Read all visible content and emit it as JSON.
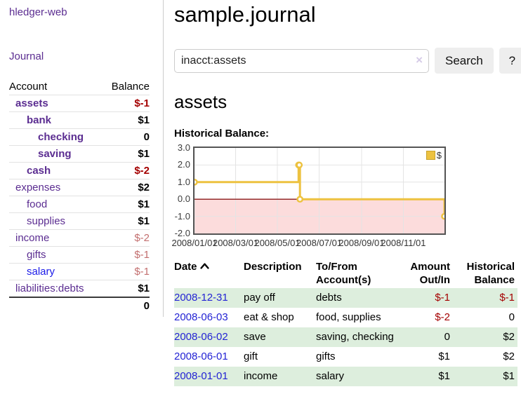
{
  "colors": {
    "link_purple": "#5b2d91",
    "link_blue": "#1b1be8",
    "date_link_blue": "#2323d4",
    "negative_strong": "#a40000",
    "negative_soft": "#c36f6f",
    "row_green": "#ddeedd",
    "series_gold": "#edc240",
    "negative_area_pink": "#fcdcdc",
    "zero_line_red": "#8b1a1a",
    "plot_border": "#545454",
    "grid_line": "#e4e4e4",
    "button_gray": "#eeeeee"
  },
  "sidebar": {
    "brand": "hledger-web",
    "journal_link": "Journal",
    "accounts": {
      "header_account": "Account",
      "header_balance": "Balance",
      "rows": [
        {
          "name": "assets",
          "depth": 1,
          "bold": true,
          "balance": "$-1",
          "neg": "strong"
        },
        {
          "name": "bank",
          "depth": 2,
          "bold": true,
          "balance": "$1"
        },
        {
          "name": "checking",
          "depth": 3,
          "bold": true,
          "balance": "0"
        },
        {
          "name": "saving",
          "depth": 3,
          "bold": true,
          "balance": "$1"
        },
        {
          "name": "cash",
          "depth": 2,
          "bold": true,
          "balance": "$-2",
          "neg": "strong"
        },
        {
          "name": "expenses",
          "depth": 1,
          "bold": false,
          "balance": "$2"
        },
        {
          "name": "food",
          "depth": 2,
          "bold": false,
          "balance": "$1"
        },
        {
          "name": "supplies",
          "depth": 2,
          "bold": false,
          "balance": "$1"
        },
        {
          "name": "income",
          "depth": 1,
          "bold": false,
          "balance": "$-2",
          "neg": "soft"
        },
        {
          "name": "gifts",
          "depth": 2,
          "bold": false,
          "balance": "$-1",
          "neg": "soft"
        },
        {
          "name": "salary",
          "depth": 2,
          "bold": false,
          "balance": "$-1",
          "neg": "soft",
          "link_color": "blue"
        },
        {
          "name": "liabilities:debts",
          "depth": 1,
          "bold": false,
          "balance": "$1"
        }
      ],
      "total": "0"
    }
  },
  "main": {
    "title": "sample.journal",
    "search": {
      "value": "inacct:assets",
      "clear_icon": "×",
      "button_label": "Search",
      "help_label": "?"
    },
    "account_heading": "assets",
    "chart_heading": "Historical Balance:"
  },
  "chart_data": {
    "type": "line",
    "style": "step-with-markers",
    "title": "Historical Balance:",
    "series": [
      {
        "name": "$",
        "points": [
          {
            "date": "2008-01-01",
            "value": 1
          },
          {
            "date": "2008-06-01",
            "value": 2
          },
          {
            "date": "2008-06-02",
            "value": 2
          },
          {
            "date": "2008-06-03",
            "value": 0
          },
          {
            "date": "2008-12-31",
            "value": -1
          }
        ]
      }
    ],
    "x_range": [
      "2008-01-01",
      "2008-12-31"
    ],
    "x_ticks": [
      {
        "date": "2008-01-01",
        "label": "2008/01/01"
      },
      {
        "date": "2008-03-01",
        "label": "2008/03/01"
      },
      {
        "date": "2008-05-01",
        "label": "2008/05/01"
      },
      {
        "date": "2008-07-01",
        "label": "2008/07/01"
      },
      {
        "date": "2008-09-01",
        "label": "2008/09/01"
      },
      {
        "date": "2008-11-01",
        "label": "2008/11/01"
      }
    ],
    "ylim": [
      -2,
      3
    ],
    "y_ticks": [
      3.0,
      2.0,
      1.0,
      0.0,
      -1.0,
      -2.0
    ],
    "legend": {
      "label": "$",
      "position": "top-right"
    },
    "grid": true,
    "negative_region_shaded": true
  },
  "register": {
    "headers": [
      {
        "line1": "Date",
        "line2": "",
        "align": "left",
        "sort": "asc"
      },
      {
        "line1": "Description",
        "line2": "",
        "align": "left"
      },
      {
        "line1": "To/From",
        "line2": "Account(s)",
        "align": "left"
      },
      {
        "line1": "Amount",
        "line2": "Out/In",
        "align": "right"
      },
      {
        "line1": "Historical",
        "line2": "Balance",
        "align": "right"
      }
    ],
    "rows": [
      {
        "date": "2008-12-31",
        "description": "pay off",
        "accounts": "debts",
        "amount": "$-1",
        "balance": "$-1",
        "amount_neg": true,
        "balance_neg": true
      },
      {
        "date": "2008-06-03",
        "description": "eat & shop",
        "accounts": "food, supplies",
        "amount": "$-2",
        "balance": "0",
        "amount_neg": true,
        "balance_neg": false
      },
      {
        "date": "2008-06-02",
        "description": "save",
        "accounts": "saving, checking",
        "amount": "0",
        "balance": "$2",
        "amount_neg": false,
        "balance_neg": false
      },
      {
        "date": "2008-06-01",
        "description": "gift",
        "accounts": "gifts",
        "amount": "$1",
        "balance": "$2",
        "amount_neg": false,
        "balance_neg": false
      },
      {
        "date": "2008-01-01",
        "description": "income",
        "accounts": "salary",
        "amount": "$1",
        "balance": "$1",
        "amount_neg": false,
        "balance_neg": false
      }
    ]
  }
}
